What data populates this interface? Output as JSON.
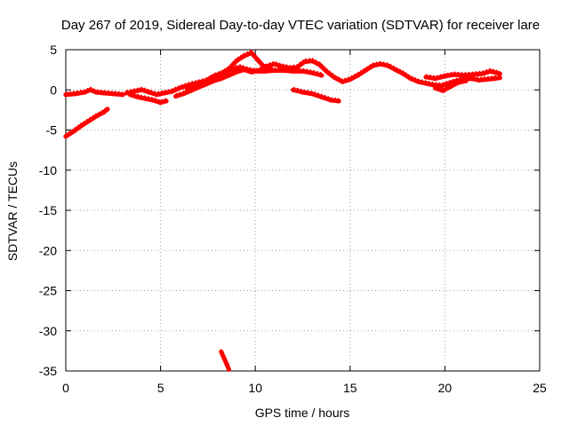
{
  "chart_data": {
    "type": "scatter",
    "title": "Day 267 of 2019, Sidereal Day-to-day VTEC variation (SDTVAR) for receiver lare",
    "xlabel": "GPS time / hours",
    "ylabel": "SDTVAR / TECUs",
    "xlim": [
      0,
      25
    ],
    "ylim": [
      -35,
      5
    ],
    "xticks": [
      0,
      5,
      10,
      15,
      20,
      25
    ],
    "yticks": [
      5,
      0,
      -5,
      -10,
      -15,
      -20,
      -25,
      -30,
      -35
    ],
    "grid": true,
    "series": [
      {
        "name": "SDTVAR",
        "color": "#ff0000",
        "segments": [
          [
            [
              0.0,
              -0.6
            ],
            [
              0.5,
              -0.5
            ],
            [
              1.0,
              -0.3
            ],
            [
              1.3,
              0.0
            ],
            [
              1.6,
              -0.3
            ],
            [
              2.0,
              -0.4
            ],
            [
              2.5,
              -0.5
            ],
            [
              3.0,
              -0.6
            ]
          ],
          [
            [
              0.0,
              -5.8
            ],
            [
              0.4,
              -5.2
            ],
            [
              0.8,
              -4.5
            ],
            [
              1.2,
              -3.9
            ],
            [
              1.6,
              -3.3
            ],
            [
              2.0,
              -2.8
            ],
            [
              2.2,
              -2.4
            ]
          ],
          [
            [
              3.2,
              -0.4
            ],
            [
              3.6,
              -0.2
            ],
            [
              4.0,
              0.0
            ],
            [
              4.4,
              -0.3
            ],
            [
              4.8,
              -0.6
            ],
            [
              5.2,
              -0.4
            ],
            [
              5.6,
              -0.2
            ],
            [
              6.0,
              0.2
            ],
            [
              6.5,
              0.6
            ],
            [
              7.0,
              0.9
            ],
            [
              7.5,
              1.2
            ],
            [
              7.8,
              1.7
            ],
            [
              8.2,
              2.0
            ],
            [
              8.6,
              2.6
            ],
            [
              9.0,
              3.6
            ],
            [
              9.4,
              4.2
            ],
            [
              9.8,
              4.6
            ],
            [
              10.1,
              3.8
            ],
            [
              10.4,
              3.0
            ],
            [
              10.8,
              2.7
            ]
          ],
          [
            [
              3.4,
              -0.6
            ],
            [
              3.8,
              -0.9
            ],
            [
              4.2,
              -1.1
            ],
            [
              4.6,
              -1.3
            ],
            [
              5.0,
              -1.6
            ],
            [
              5.3,
              -1.4
            ]
          ],
          [
            [
              5.8,
              -0.8
            ],
            [
              6.2,
              -0.5
            ],
            [
              6.6,
              -0.1
            ],
            [
              7.0,
              0.3
            ],
            [
              7.4,
              0.7
            ],
            [
              7.8,
              1.1
            ],
            [
              8.2,
              1.4
            ],
            [
              8.6,
              1.8
            ],
            [
              9.0,
              2.2
            ],
            [
              9.4,
              2.5
            ],
            [
              9.8,
              2.2
            ],
            [
              10.2,
              2.4
            ],
            [
              10.6,
              2.9
            ],
            [
              11.0,
              3.2
            ],
            [
              11.4,
              2.9
            ],
            [
              11.8,
              2.7
            ],
            [
              12.2,
              2.8
            ],
            [
              12.6,
              3.5
            ],
            [
              13.0,
              3.6
            ],
            [
              13.4,
              3.1
            ],
            [
              13.8,
              2.2
            ],
            [
              14.2,
              1.5
            ],
            [
              14.6,
              1.0
            ],
            [
              15.0,
              1.3
            ],
            [
              15.4,
              1.8
            ],
            [
              15.8,
              2.4
            ],
            [
              16.2,
              3.0
            ],
            [
              16.6,
              3.2
            ],
            [
              17.0,
              3.0
            ],
            [
              17.4,
              2.5
            ],
            [
              17.8,
              2.0
            ],
            [
              18.2,
              1.4
            ],
            [
              18.6,
              1.0
            ],
            [
              19.0,
              0.8
            ],
            [
              19.4,
              0.6
            ],
            [
              19.8,
              0.5
            ],
            [
              20.2,
              0.8
            ],
            [
              20.6,
              1.1
            ],
            [
              21.0,
              1.3
            ],
            [
              21.4,
              1.4
            ],
            [
              21.8,
              1.2
            ],
            [
              22.2,
              1.3
            ],
            [
              22.6,
              1.4
            ],
            [
              22.9,
              1.5
            ]
          ],
          [
            [
              6.4,
              0.0
            ],
            [
              6.8,
              0.4
            ],
            [
              7.2,
              0.8
            ],
            [
              7.6,
              1.4
            ],
            [
              8.0,
              1.8
            ],
            [
              8.4,
              2.2
            ],
            [
              8.8,
              2.6
            ],
            [
              9.2,
              2.8
            ],
            [
              9.6,
              2.5
            ],
            [
              10.0,
              2.3
            ],
            [
              10.5,
              2.3
            ],
            [
              11.0,
              2.4
            ],
            [
              11.5,
              2.4
            ],
            [
              12.0,
              2.3
            ],
            [
              12.5,
              2.3
            ],
            [
              13.0,
              2.1
            ],
            [
              13.5,
              1.8
            ]
          ],
          [
            [
              12.0,
              0.0
            ],
            [
              12.5,
              -0.3
            ],
            [
              13.0,
              -0.5
            ],
            [
              13.5,
              -0.9
            ],
            [
              14.0,
              -1.3
            ],
            [
              14.4,
              -1.4
            ]
          ],
          [
            [
              19.0,
              1.6
            ],
            [
              19.5,
              1.4
            ],
            [
              20.0,
              1.7
            ],
            [
              20.5,
              1.9
            ],
            [
              21.0,
              1.8
            ],
            [
              21.5,
              1.9
            ],
            [
              22.0,
              2.0
            ],
            [
              22.4,
              2.3
            ],
            [
              22.9,
              2.0
            ]
          ],
          [
            [
              19.5,
              0.2
            ],
            [
              19.9,
              -0.1
            ],
            [
              20.3,
              0.4
            ],
            [
              20.7,
              0.9
            ],
            [
              21.1,
              1.1
            ]
          ],
          [
            [
              8.2,
              -32.6
            ],
            [
              8.35,
              -33.4
            ],
            [
              8.5,
              -34.2
            ],
            [
              8.6,
              -34.8
            ]
          ]
        ]
      }
    ]
  }
}
